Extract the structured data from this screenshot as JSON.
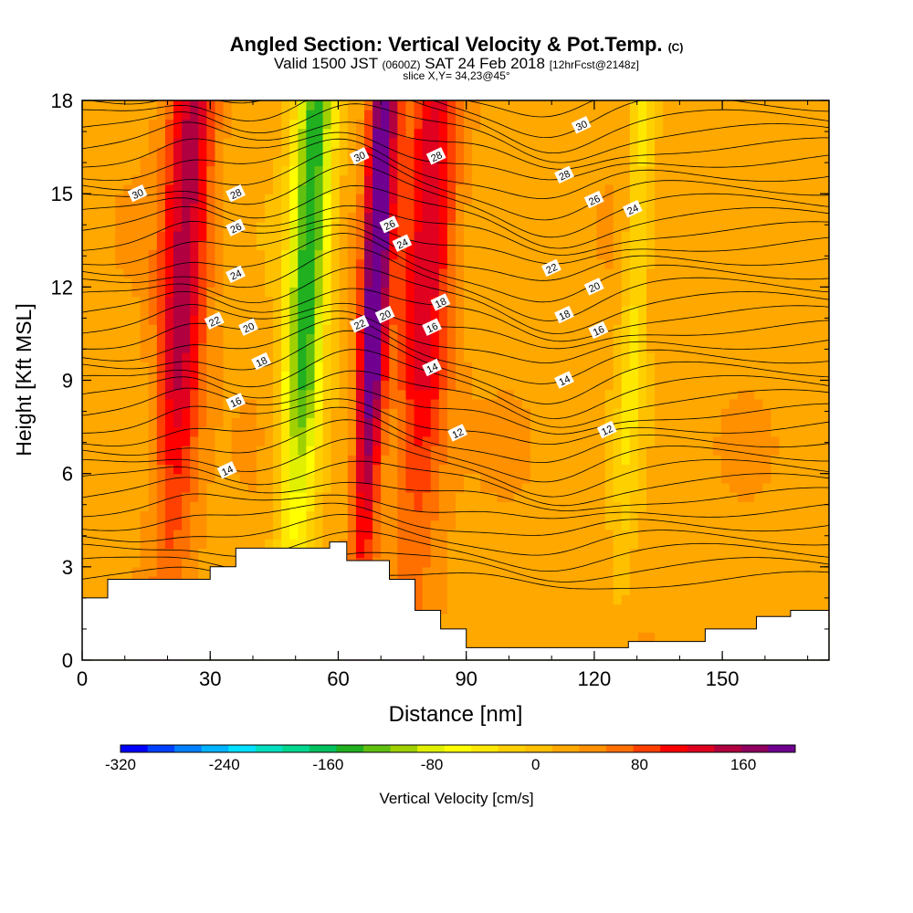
{
  "header": {
    "title_main": "Angled Section: Vertical Velocity & Pot.Temp.",
    "title_units": "(C)",
    "valid_prefix": "Valid 1500 JST",
    "valid_utc": "(0600Z)",
    "valid_date": "SAT 24 Feb 2018",
    "valid_fcst": "[12hrFcst@2148z]",
    "slice": "slice X,Y= 34,23@45°"
  },
  "chart_data": {
    "type": "heatmap",
    "xlabel": "Distance [nm]",
    "ylabel": "Height [Kft MSL]",
    "xlim": [
      0,
      175
    ],
    "ylim": [
      0,
      18
    ],
    "x_ticks": [
      "0",
      "30",
      "60",
      "90",
      "120",
      "150"
    ],
    "y_ticks": [
      "0",
      "3",
      "6",
      "9",
      "12",
      "15",
      "18"
    ],
    "colorbar": {
      "label": "Vertical Velocity [cm/s]",
      "tick_labels": [
        "-320",
        "-240",
        "-160",
        "-80",
        "0",
        "80",
        "160"
      ],
      "range": [
        -320,
        200
      ],
      "colors": [
        "#0000ff",
        "#0040ff",
        "#0080ff",
        "#00b4ff",
        "#00e0ff",
        "#00e0c0",
        "#00d890",
        "#00c060",
        "#20b020",
        "#60c010",
        "#a0d000",
        "#e0f000",
        "#ffff00",
        "#ffe800",
        "#ffd000",
        "#ffc000",
        "#ffa800",
        "#ff9000",
        "#ff7000",
        "#ff4000",
        "#ff0000",
        "#e00020",
        "#b00040",
        "#900060",
        "#700090"
      ]
    },
    "velocity_bands": [
      {
        "x": [
          16,
          30
        ],
        "peak": 120
      },
      {
        "x": [
          46,
          58
        ],
        "peak": -170
      },
      {
        "x": [
          64,
          72
        ],
        "peak": 190
      },
      {
        "x": [
          72,
          88
        ],
        "peak": 100
      },
      {
        "x": [
          125,
          133
        ],
        "peak": -60
      }
    ],
    "terrain": [
      [
        0,
        2.0
      ],
      [
        6,
        2.6
      ],
      [
        30,
        3.0
      ],
      [
        36,
        3.6
      ],
      [
        52,
        3.6
      ],
      [
        58,
        3.8
      ],
      [
        62,
        3.2
      ],
      [
        72,
        2.6
      ],
      [
        78,
        1.6
      ],
      [
        84,
        1.0
      ],
      [
        90,
        0.4
      ],
      [
        128,
        0.6
      ],
      [
        146,
        1.0
      ],
      [
        158,
        1.4
      ],
      [
        166,
        1.6
      ],
      [
        175,
        1.6
      ]
    ],
    "theta_labels": [
      {
        "text": "30",
        "x": 13,
        "y": 15.0
      },
      {
        "text": "28",
        "x": 36,
        "y": 15.0
      },
      {
        "text": "26",
        "x": 36,
        "y": 13.9
      },
      {
        "text": "24",
        "x": 36,
        "y": 12.4
      },
      {
        "text": "22",
        "x": 31,
        "y": 10.9
      },
      {
        "text": "20",
        "x": 39,
        "y": 10.7
      },
      {
        "text": "18",
        "x": 42,
        "y": 9.6
      },
      {
        "text": "16",
        "x": 36,
        "y": 8.3
      },
      {
        "text": "14",
        "x": 34,
        "y": 6.1
      },
      {
        "text": "30",
        "x": 65,
        "y": 16.2
      },
      {
        "text": "28",
        "x": 83,
        "y": 16.2
      },
      {
        "text": "26",
        "x": 72,
        "y": 14.0
      },
      {
        "text": "24",
        "x": 75,
        "y": 13.4
      },
      {
        "text": "22",
        "x": 65,
        "y": 10.8
      },
      {
        "text": "20",
        "x": 71,
        "y": 11.1
      },
      {
        "text": "18",
        "x": 84,
        "y": 11.5
      },
      {
        "text": "16",
        "x": 82,
        "y": 10.7
      },
      {
        "text": "14",
        "x": 82,
        "y": 9.4
      },
      {
        "text": "12",
        "x": 88,
        "y": 7.3
      },
      {
        "text": "30",
        "x": 117,
        "y": 17.2
      },
      {
        "text": "28",
        "x": 113,
        "y": 15.6
      },
      {
        "text": "26",
        "x": 120,
        "y": 14.8
      },
      {
        "text": "24",
        "x": 129,
        "y": 14.5
      },
      {
        "text": "22",
        "x": 110,
        "y": 12.6
      },
      {
        "text": "20",
        "x": 120,
        "y": 12.0
      },
      {
        "text": "18",
        "x": 113,
        "y": 11.1
      },
      {
        "text": "16",
        "x": 121,
        "y": 10.6
      },
      {
        "text": "14",
        "x": 113,
        "y": 9.0
      },
      {
        "text": "12",
        "x": 123,
        "y": 7.4
      }
    ]
  }
}
